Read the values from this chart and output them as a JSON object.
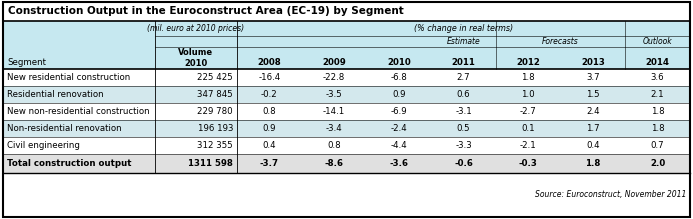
{
  "title": "Construction Output in the Euroconstruct Area (EC-19) by Segment",
  "source": "Source: Euroconstruct, November 2011",
  "rows": [
    {
      "segment": "New residential construction",
      "volume": "225 425",
      "values": [
        "-16.4",
        "-22.8",
        "-6.8",
        "2.7",
        "1.8",
        "3.7",
        "3.6"
      ],
      "bold": false,
      "shaded": false
    },
    {
      "segment": "Residential renovation",
      "volume": "347 845",
      "values": [
        "-0.2",
        "-3.5",
        "0.9",
        "0.6",
        "1.0",
        "1.5",
        "2.1"
      ],
      "bold": false,
      "shaded": true
    },
    {
      "segment": "New non-residential construction",
      "volume": "229 780",
      "values": [
        "0.8",
        "-14.1",
        "-6.9",
        "-3.1",
        "-2.7",
        "2.4",
        "1.8"
      ],
      "bold": false,
      "shaded": false
    },
    {
      "segment": "Non-residential renovation",
      "volume": "196 193",
      "values": [
        "0.9",
        "-3.4",
        "-2.4",
        "0.5",
        "0.1",
        "1.7",
        "1.8"
      ],
      "bold": false,
      "shaded": true
    },
    {
      "segment": "Civil engineering",
      "volume": "312 355",
      "values": [
        "0.4",
        "0.8",
        "-4.4",
        "-3.3",
        "-2.1",
        "0.4",
        "0.7"
      ],
      "bold": false,
      "shaded": false
    },
    {
      "segment": "Total construction output",
      "volume": "1311 598",
      "values": [
        "-3.7",
        "-8.6",
        "-3.6",
        "-0.6",
        "-0.3",
        "1.8",
        "2.0"
      ],
      "bold": true,
      "shaded": false
    }
  ],
  "header_bg": "#c6e8f0",
  "shade_color": "#d3e8ed",
  "total_bg": "#e0e0e0",
  "white": "#ffffff",
  "border": "#000000"
}
